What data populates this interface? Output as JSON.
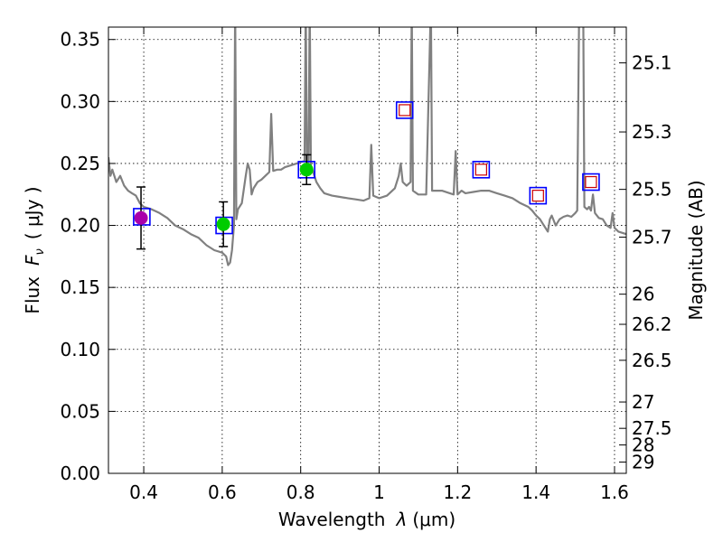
{
  "chart_data": {
    "type": "scatter",
    "xlabel_text": "Wavelength",
    "xlabel_symbol": "λ",
    "xlabel_unit": "(μm)",
    "ylabel_text": "Flux",
    "ylabel_symbol": "F",
    "ylabel_subscript": "ν",
    "ylabel_unit": "( μJy )",
    "y2label": "Magnitude (AB)",
    "xlim": [
      0.31,
      1.63
    ],
    "ylim": [
      0.0,
      0.36
    ],
    "x_ticks": [
      "0.4",
      "0.6",
      "0.8",
      "1",
      "1.2",
      "1.4",
      "1.6"
    ],
    "x_tick_values": [
      0.4,
      0.6,
      0.8,
      1.0,
      1.2,
      1.4,
      1.6
    ],
    "y_ticks": [
      "0.00",
      "0.05",
      "0.10",
      "0.15",
      "0.20",
      "0.25",
      "0.30",
      "0.35"
    ],
    "y_tick_values": [
      0.0,
      0.05,
      0.1,
      0.15,
      0.2,
      0.25,
      0.3,
      0.35
    ],
    "y2_ticks": [
      "25.1",
      "25.3",
      "25.5",
      "25.7",
      "26",
      "26.2",
      "26.5",
      "27",
      "27.5",
      "28",
      "29"
    ],
    "y2_tick_values": [
      25.1,
      25.3,
      25.5,
      25.7,
      26.0,
      26.2,
      26.5,
      27.0,
      27.5,
      28.0,
      29.0
    ],
    "grid": true,
    "colors": {
      "template": "#808080",
      "model_box": "#0000ff",
      "obs_green": "#00cc00",
      "obs_magenta": "#aa00aa",
      "upper_limit": "#cc0000",
      "errorbar": "#000000"
    },
    "template_spectrum": [
      [
        0.31,
        0.255
      ],
      [
        0.315,
        0.24
      ],
      [
        0.32,
        0.245
      ],
      [
        0.33,
        0.235
      ],
      [
        0.34,
        0.24
      ],
      [
        0.35,
        0.232
      ],
      [
        0.36,
        0.228
      ],
      [
        0.37,
        0.226
      ],
      [
        0.38,
        0.224
      ],
      [
        0.39,
        0.218
      ],
      [
        0.4,
        0.215
      ],
      [
        0.42,
        0.213
      ],
      [
        0.44,
        0.21
      ],
      [
        0.46,
        0.206
      ],
      [
        0.48,
        0.2
      ],
      [
        0.5,
        0.197
      ],
      [
        0.52,
        0.193
      ],
      [
        0.54,
        0.19
      ],
      [
        0.56,
        0.184
      ],
      [
        0.58,
        0.18
      ],
      [
        0.6,
        0.178
      ],
      [
        0.61,
        0.175
      ],
      [
        0.615,
        0.168
      ],
      [
        0.62,
        0.17
      ],
      [
        0.625,
        0.18
      ],
      [
        0.63,
        0.2
      ],
      [
        0.633,
        0.38
      ],
      [
        0.636,
        0.205
      ],
      [
        0.64,
        0.213
      ],
      [
        0.65,
        0.218
      ],
      [
        0.66,
        0.24
      ],
      [
        0.665,
        0.25
      ],
      [
        0.67,
        0.245
      ],
      [
        0.675,
        0.225
      ],
      [
        0.68,
        0.23
      ],
      [
        0.69,
        0.235
      ],
      [
        0.7,
        0.237
      ],
      [
        0.71,
        0.24
      ],
      [
        0.72,
        0.243
      ],
      [
        0.725,
        0.29
      ],
      [
        0.73,
        0.244
      ],
      [
        0.74,
        0.245
      ],
      [
        0.75,
        0.245
      ],
      [
        0.76,
        0.247
      ],
      [
        0.77,
        0.248
      ],
      [
        0.78,
        0.249
      ],
      [
        0.79,
        0.25
      ],
      [
        0.8,
        0.251
      ],
      [
        0.81,
        0.252
      ],
      [
        0.813,
        0.38
      ],
      [
        0.816,
        0.25
      ],
      [
        0.82,
        0.25
      ],
      [
        0.823,
        0.38
      ],
      [
        0.826,
        0.248
      ],
      [
        0.83,
        0.245
      ],
      [
        0.84,
        0.235
      ],
      [
        0.85,
        0.23
      ],
      [
        0.86,
        0.226
      ],
      [
        0.88,
        0.224
      ],
      [
        0.9,
        0.223
      ],
      [
        0.92,
        0.222
      ],
      [
        0.94,
        0.221
      ],
      [
        0.96,
        0.22
      ],
      [
        0.975,
        0.222
      ],
      [
        0.98,
        0.265
      ],
      [
        0.985,
        0.224
      ],
      [
        1.0,
        0.222
      ],
      [
        1.02,
        0.224
      ],
      [
        1.04,
        0.23
      ],
      [
        1.05,
        0.24
      ],
      [
        1.055,
        0.25
      ],
      [
        1.06,
        0.235
      ],
      [
        1.07,
        0.232
      ],
      [
        1.08,
        0.235
      ],
      [
        1.083,
        0.38
      ],
      [
        1.086,
        0.228
      ],
      [
        1.1,
        0.225
      ],
      [
        1.12,
        0.225
      ],
      [
        1.132,
        0.38
      ],
      [
        1.135,
        0.228
      ],
      [
        1.16,
        0.228
      ],
      [
        1.18,
        0.226
      ],
      [
        1.19,
        0.225
      ],
      [
        1.195,
        0.26
      ],
      [
        1.2,
        0.225
      ],
      [
        1.21,
        0.228
      ],
      [
        1.22,
        0.226
      ],
      [
        1.24,
        0.227
      ],
      [
        1.26,
        0.228
      ],
      [
        1.28,
        0.228
      ],
      [
        1.3,
        0.226
      ],
      [
        1.32,
        0.224
      ],
      [
        1.34,
        0.222
      ],
      [
        1.36,
        0.218
      ],
      [
        1.38,
        0.215
      ],
      [
        1.39,
        0.212
      ],
      [
        1.4,
        0.208
      ],
      [
        1.41,
        0.205
      ],
      [
        1.42,
        0.2
      ],
      [
        1.43,
        0.195
      ],
      [
        1.435,
        0.205
      ],
      [
        1.44,
        0.208
      ],
      [
        1.45,
        0.2
      ],
      [
        1.46,
        0.205
      ],
      [
        1.47,
        0.207
      ],
      [
        1.48,
        0.208
      ],
      [
        1.49,
        0.207
      ],
      [
        1.5,
        0.21
      ],
      [
        1.505,
        0.212
      ],
      [
        1.51,
        0.38
      ],
      [
        1.52,
        0.38
      ],
      [
        1.523,
        0.215
      ],
      [
        1.53,
        0.213
      ],
      [
        1.535,
        0.215
      ],
      [
        1.54,
        0.212
      ],
      [
        1.545,
        0.225
      ],
      [
        1.55,
        0.21
      ],
      [
        1.56,
        0.206
      ],
      [
        1.57,
        0.205
      ],
      [
        1.58,
        0.2
      ],
      [
        1.59,
        0.198
      ],
      [
        1.595,
        0.21
      ],
      [
        1.6,
        0.198
      ],
      [
        1.61,
        0.195
      ],
      [
        1.62,
        0.194
      ],
      [
        1.63,
        0.193
      ]
    ],
    "model_points": [
      {
        "x": 0.395,
        "y": 0.207
      },
      {
        "x": 0.605,
        "y": 0.2
      },
      {
        "x": 0.815,
        "y": 0.245
      },
      {
        "x": 1.065,
        "y": 0.293
      },
      {
        "x": 1.26,
        "y": 0.245
      },
      {
        "x": 1.405,
        "y": 0.224
      },
      {
        "x": 1.54,
        "y": 0.235
      }
    ],
    "observations": [
      {
        "x": 0.393,
        "y": 0.206,
        "err": 0.025,
        "color": "magenta"
      },
      {
        "x": 0.603,
        "y": 0.201,
        "err": 0.018,
        "color": "green"
      },
      {
        "x": 0.815,
        "y": 0.245,
        "err": 0.012,
        "color": "green"
      }
    ],
    "upper_limits": [
      {
        "x": 1.065,
        "y": 0.293
      },
      {
        "x": 1.26,
        "y": 0.245
      },
      {
        "x": 1.405,
        "y": 0.224
      },
      {
        "x": 1.54,
        "y": 0.235
      }
    ]
  }
}
